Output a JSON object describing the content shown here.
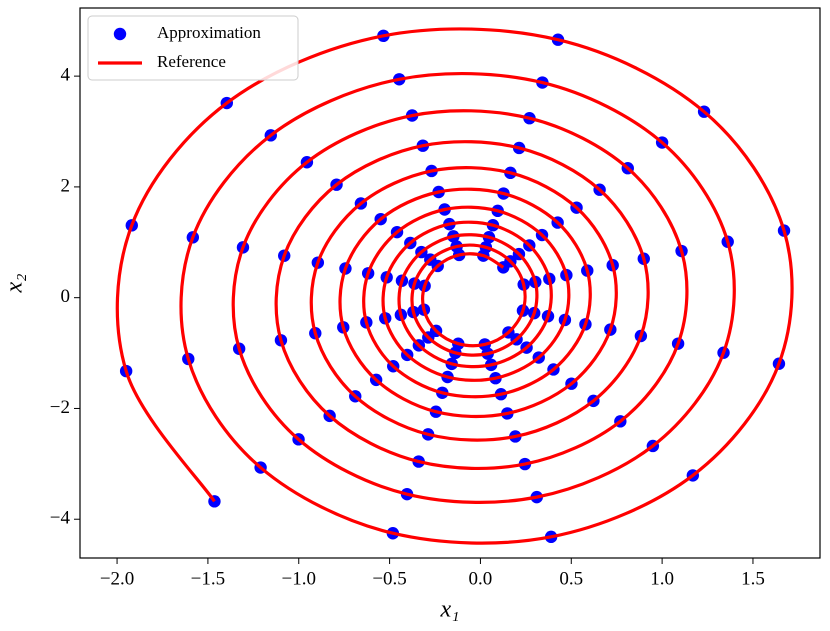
{
  "chart_data": {
    "type": "scatter",
    "xlabel": "x₁",
    "ylabel": "x₂",
    "xlim": [
      -2.204,
      1.869
    ],
    "ylim": [
      -4.7,
      5.23
    ],
    "xticks": [
      {
        "value": -2.0,
        "label": "−2.0"
      },
      {
        "value": -1.5,
        "label": "−1.5"
      },
      {
        "value": -1.0,
        "label": "−1.0"
      },
      {
        "value": -0.5,
        "label": "−0.5"
      },
      {
        "value": 0,
        "label": "0.0"
      },
      {
        "value": 0.5,
        "label": "0.5"
      },
      {
        "value": 1.0,
        "label": "1.0"
      },
      {
        "value": 1.5,
        "label": "1.5"
      }
    ],
    "yticks": [
      {
        "value": -4,
        "label": "−4"
      },
      {
        "value": -2,
        "label": "−2"
      },
      0,
      2,
      4
    ],
    "grid": false,
    "legend": "upper left",
    "series": [
      {
        "name": "Approximation",
        "color": "#0000ff",
        "style": "markers",
        "x": [
          -1.464,
          -1.95,
          -1.919,
          -1.396,
          -0.534,
          0.427,
          1.231,
          1.671,
          1.643,
          1.169,
          0.389,
          -0.482,
          -1.21,
          -1.608,
          -1.583,
          -1.154,
          -0.447,
          0.341,
          1.0,
          1.361,
          1.338,
          0.949,
          0.31,
          -0.404,
          -1.001,
          -1.328,
          -1.307,
          -0.955,
          -0.376,
          0.27,
          0.811,
          1.107,
          1.088,
          0.77,
          0.245,
          -0.34,
          -0.83,
          -1.098,
          -1.08,
          -0.792,
          -0.317,
          0.213,
          0.656,
          0.899,
          0.883,
          0.622,
          0.192,
          -0.288,
          -0.689,
          -0.909,
          -0.895,
          -0.658,
          -0.269,
          0.165,
          0.529,
          0.728,
          0.715,
          0.501,
          0.148,
          -0.245,
          -0.574,
          -0.755,
          -0.743,
          -0.549,
          -0.23,
          0.127,
          0.425,
          0.588,
          0.578,
          0.402,
          0.113,
          -0.21,
          -0.48,
          -0.628,
          -0.618,
          -0.459,
          -0.197,
          0.095,
          0.339,
          0.473,
          0.465,
          0.321,
          0.083,
          -0.181,
          -0.403,
          -0.524,
          -0.516,
          -0.386,
          -0.171,
          0.069,
          0.269,
          0.379,
          0.372,
          0.254,
          0.059,
          -0.158,
          -0.339,
          -0.438,
          -0.432,
          -0.325,
          -0.149,
          0.047,
          0.212,
          0.302,
          0.296,
          0.199,
          0.04,
          -0.138,
          -0.287,
          -0.369,
          -0.363,
          -0.276,
          -0.131,
          0.03,
          0.165,
          0.238,
          0.234,
          0.154,
          0.024,
          -0.122,
          -0.244,
          -0.311,
          -0.307,
          -0.235,
          -0.117,
          0.016,
          0.126
        ],
        "y": [
          -3.677,
          -1.325,
          1.306,
          3.514,
          4.728,
          4.657,
          3.358,
          1.211,
          -1.192,
          -3.209,
          -4.318,
          -4.253,
          -3.067,
          -1.106,
          1.089,
          2.931,
          3.943,
          3.884,
          2.801,
          1.01,
          -0.994,
          -2.677,
          -3.601,
          -3.547,
          -2.558,
          -0.922,
          0.908,
          2.445,
          3.289,
          3.24,
          2.337,
          0.842,
          -0.83,
          -2.233,
          -3.004,
          -2.959,
          -2.134,
          -0.769,
          0.758,
          2.04,
          2.744,
          2.703,
          1.949,
          0.703,
          -0.692,
          -1.863,
          -2.506,
          -2.468,
          -1.78,
          -0.642,
          0.632,
          1.701,
          2.288,
          2.254,
          1.625,
          0.586,
          -0.577,
          -1.553,
          -2.09,
          -2.059,
          -1.484,
          -0.535,
          0.527,
          1.418,
          1.908,
          1.88,
          1.356,
          0.489,
          -0.481,
          -1.296,
          -1.743,
          -1.717,
          -1.238,
          -0.446,
          0.44,
          1.183,
          1.592,
          1.568,
          1.131,
          0.408,
          -0.402,
          -1.081,
          -1.454,
          -1.432,
          -1.033,
          -0.372,
          0.367,
          0.987,
          1.328,
          1.308,
          0.944,
          0.34,
          -0.335,
          -0.902,
          -1.213,
          -1.195,
          -0.861,
          -0.31,
          0.306,
          0.823,
          1.107,
          1.091,
          0.787,
          0.284,
          -0.279,
          -0.752,
          -1.011,
          -0.996,
          -0.718,
          -0.259,
          0.255,
          0.687,
          0.924,
          0.91,
          0.656,
          0.237,
          -0.233,
          -0.627,
          -0.844,
          -0.831,
          -0.599,
          -0.216,
          0.213,
          0.573,
          0.771,
          0.759,
          0.547
        ]
      },
      {
        "name": "Reference",
        "color": "#ff0000",
        "style": "line",
        "x": [
          -1.464,
          -1.95,
          -1.919,
          -1.396,
          -0.534,
          0.427,
          1.231,
          1.671,
          1.643,
          1.169,
          0.389,
          -0.482,
          -1.21,
          -1.608,
          -1.583,
          -1.154,
          -0.447,
          0.341,
          1.0,
          1.361,
          1.338,
          0.949,
          0.31,
          -0.404,
          -1.001,
          -1.328,
          -1.307,
          -0.955,
          -0.376,
          0.27,
          0.811,
          1.107,
          1.088,
          0.77,
          0.245,
          -0.34,
          -0.83,
          -1.098,
          -1.08,
          -0.792,
          -0.317,
          0.213,
          0.656,
          0.899,
          0.883,
          0.622,
          0.192,
          -0.288,
          -0.689,
          -0.909,
          -0.895,
          -0.658,
          -0.269,
          0.165,
          0.529,
          0.728,
          0.715,
          0.501,
          0.148,
          -0.245,
          -0.574,
          -0.755,
          -0.743,
          -0.549,
          -0.23,
          0.127,
          0.425,
          0.588,
          0.578,
          0.402,
          0.113,
          -0.21,
          -0.48,
          -0.628,
          -0.618,
          -0.459,
          -0.197,
          0.095,
          0.339,
          0.473,
          0.465,
          0.321,
          0.083,
          -0.181,
          -0.403,
          -0.524,
          -0.516,
          -0.386,
          -0.171,
          0.069,
          0.269,
          0.379,
          0.372,
          0.254,
          0.059,
          -0.158,
          -0.339,
          -0.438,
          -0.432,
          -0.325,
          -0.149,
          0.047,
          0.212,
          0.302,
          0.296,
          0.199,
          0.04,
          -0.138,
          -0.287,
          -0.369,
          -0.363,
          -0.276,
          -0.131,
          0.03,
          0.165,
          0.238,
          0.234,
          0.154,
          0.024,
          -0.122,
          -0.244,
          -0.311,
          -0.307,
          -0.235,
          -0.117,
          0.016,
          0.126
        ],
        "y": [
          -3.677,
          -1.325,
          1.306,
          3.514,
          4.728,
          4.657,
          3.358,
          1.211,
          -1.192,
          -3.209,
          -4.318,
          -4.253,
          -3.067,
          -1.106,
          1.089,
          2.931,
          3.943,
          3.884,
          2.801,
          1.01,
          -0.994,
          -2.677,
          -3.601,
          -3.547,
          -2.558,
          -0.922,
          0.908,
          2.445,
          3.289,
          3.24,
          2.337,
          0.842,
          -0.83,
          -2.233,
          -3.004,
          -2.959,
          -2.134,
          -0.769,
          0.758,
          2.04,
          2.744,
          2.703,
          1.949,
          0.703,
          -0.692,
          -1.863,
          -2.506,
          -2.468,
          -1.78,
          -0.642,
          0.632,
          1.701,
          2.288,
          2.254,
          1.625,
          0.586,
          -0.577,
          -1.553,
          -2.09,
          -2.059,
          -1.484,
          -0.535,
          0.527,
          1.418,
          1.908,
          1.88,
          1.356,
          0.489,
          -0.481,
          -1.296,
          -1.743,
          -1.717,
          -1.238,
          -0.446,
          0.44,
          1.183,
          1.592,
          1.568,
          1.131,
          0.408,
          -0.402,
          -1.081,
          -1.454,
          -1.432,
          -1.033,
          -0.372,
          0.367,
          0.987,
          1.328,
          1.308,
          0.944,
          0.34,
          -0.335,
          -0.902,
          -1.213,
          -1.195,
          -0.861,
          -0.31,
          0.306,
          0.823,
          1.107,
          1.091,
          0.787,
          0.284,
          -0.279,
          -0.752,
          -1.011,
          -0.996,
          -0.718,
          -0.259,
          0.255,
          0.687,
          0.924,
          0.91,
          0.656,
          0.237,
          -0.233,
          -0.627,
          -0.844,
          -0.831,
          -0.599,
          -0.216,
          0.213,
          0.573,
          0.771,
          0.759,
          0.547
        ]
      }
    ]
  }
}
